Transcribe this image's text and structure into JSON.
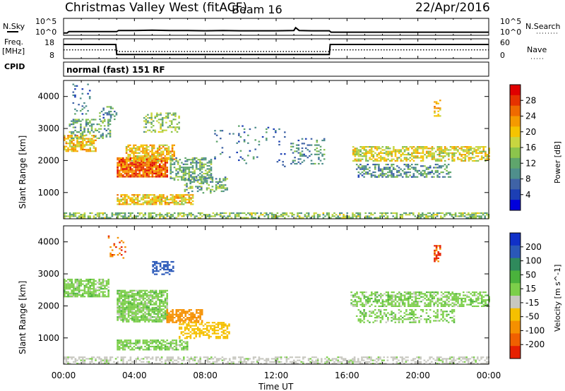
{
  "header": {
    "site": "Christmas Valley West (fitACF)",
    "beam": "Beam 16",
    "date": "22/Apr/2016"
  },
  "mode_label": "normal (fast) 151 RF",
  "left_labels": {
    "nsky": "N.Sky",
    "freq_1": "Freq.",
    "freq_2": "[MHz]",
    "cpid": "CPID"
  },
  "right_labels": {
    "nsearch": "N.Search",
    "nave": "Nave"
  },
  "colors": {
    "trace": "#000000",
    "missing": "#ffffff"
  },
  "chart_data": [
    {
      "type": "line",
      "panel": "noise",
      "left_axis_label": "N.Sky",
      "right_axis_label": "N.Search",
      "y_ticks_left": [
        "10^5",
        "10^0"
      ],
      "y_ticks_right": [
        "10^5",
        "10^0"
      ],
      "x_range_hours": [
        0,
        24
      ],
      "series": [
        {
          "name": "N.Sky",
          "x": [
            0,
            0.2,
            0.3,
            3,
            3.1,
            4,
            5,
            6,
            7,
            8,
            9,
            10,
            11,
            12,
            13,
            13.1,
            13.3,
            14,
            14.8,
            15,
            15.1,
            16,
            18,
            20,
            22,
            24
          ],
          "y": [
            0.3,
            0.3,
            0.8,
            0.8,
            1.2,
            1.2,
            1.3,
            1.2,
            1.2,
            1.1,
            1.2,
            1.1,
            1.1,
            1.1,
            1.2,
            2.2,
            1.2,
            1.1,
            1.1,
            1.1,
            0.6,
            0.6,
            0.6,
            0.6,
            0.6,
            0.6
          ]
        }
      ]
    },
    {
      "type": "line",
      "panel": "frequency",
      "left_axis_label": "Freq. [MHz]",
      "right_axis_label": "Nave",
      "y_ticks_left": [
        "18",
        "8"
      ],
      "y_ticks_right": [
        "60",
        "0"
      ],
      "x_range_hours": [
        0,
        24
      ],
      "series": [
        {
          "name": "Freq.",
          "x": [
            0,
            2.95,
            3.0,
            15.0,
            15.05,
            24
          ],
          "y": [
            15.5,
            15.5,
            9.6,
            9.6,
            15.5,
            15.5
          ]
        },
        {
          "name": "Nave",
          "x": [
            0,
            3,
            3.05,
            15,
            15.05,
            24
          ],
          "y": [
            26,
            26,
            20,
            20,
            26,
            26
          ]
        }
      ]
    },
    {
      "type": "heatmap",
      "panel": "power",
      "xlabel": "",
      "ylabel": "Slant Range [km]",
      "xlim": [
        0,
        24
      ],
      "ylim": [
        180,
        4500
      ],
      "y_ticks": [
        1000,
        2000,
        3000,
        4000
      ],
      "colorbar": {
        "label": "Power [dB]",
        "ticks": [
          4,
          8,
          12,
          16,
          20,
          24,
          28
        ],
        "range": [
          0,
          32
        ],
        "colors": [
          "#0000dc",
          "#1c3fb4",
          "#3f63a6",
          "#4f8f8c",
          "#5fa56c",
          "#8cc44c",
          "#c8d640",
          "#f5c400",
          "#f59a00",
          "#ef6a00",
          "#e63200",
          "#e00000"
        ]
      },
      "regions": [
        {
          "t0": 0.0,
          "t1": 1.8,
          "r0": 2300,
          "r1": 2800,
          "level": 20,
          "density": 0.7
        },
        {
          "t0": 0.3,
          "t1": 2.6,
          "r0": 2700,
          "r1": 3300,
          "level": 12,
          "density": 0.4
        },
        {
          "t0": 0.5,
          "t1": 1.5,
          "r0": 3400,
          "r1": 4400,
          "level": 8,
          "density": 0.12
        },
        {
          "t0": 2.0,
          "t1": 3.0,
          "r0": 3300,
          "r1": 3700,
          "level": 10,
          "density": 0.35
        },
        {
          "t0": 3.0,
          "t1": 5.8,
          "r0": 1500,
          "r1": 2100,
          "level": 26,
          "density": 0.9
        },
        {
          "t0": 3.5,
          "t1": 6.2,
          "r0": 2000,
          "r1": 2500,
          "level": 20,
          "density": 0.7
        },
        {
          "t0": 4.5,
          "t1": 6.5,
          "r0": 2900,
          "r1": 3500,
          "level": 14,
          "density": 0.4
        },
        {
          "t0": 6.0,
          "t1": 8.3,
          "r0": 1400,
          "r1": 2100,
          "level": 12,
          "density": 0.55
        },
        {
          "t0": 6.8,
          "t1": 9.2,
          "r0": 1000,
          "r1": 1500,
          "level": 12,
          "density": 0.45
        },
        {
          "t0": 3.0,
          "t1": 7.3,
          "r0": 650,
          "r1": 950,
          "level": 20,
          "density": 0.75
        },
        {
          "t0": 0.0,
          "t1": 24.0,
          "r0": 200,
          "r1": 380,
          "level": 14,
          "density": 0.55
        },
        {
          "t0": 8.5,
          "t1": 12.5,
          "r0": 1800,
          "r1": 3100,
          "level": 8,
          "density": 0.06
        },
        {
          "t0": 12.8,
          "t1": 14.7,
          "r0": 1900,
          "r1": 2700,
          "level": 10,
          "density": 0.25
        },
        {
          "t0": 16.3,
          "t1": 24.0,
          "r0": 2000,
          "r1": 2450,
          "level": 18,
          "density": 0.6
        },
        {
          "t0": 16.5,
          "t1": 21.8,
          "r0": 1500,
          "r1": 1900,
          "level": 10,
          "density": 0.45
        },
        {
          "t0": 20.9,
          "t1": 21.3,
          "r0": 3400,
          "r1": 3900,
          "level": 22,
          "density": 0.5
        }
      ]
    },
    {
      "type": "heatmap",
      "panel": "velocity",
      "xlabel": "Time UT",
      "ylabel": "Slant Range [km]",
      "xlim": [
        0,
        24
      ],
      "ylim": [
        180,
        4500
      ],
      "x_ticks": [
        "00:00",
        "04:00",
        "08:00",
        "12:00",
        "16:00",
        "20:00",
        "00:00"
      ],
      "y_ticks": [
        1000,
        2000,
        3000,
        4000
      ],
      "colorbar": {
        "label": "Velocity [m s^-1]",
        "ticks": [
          200,
          100,
          50,
          15,
          -15,
          -50,
          -100,
          -200
        ],
        "colors": [
          "#1030c8",
          "#2a58b8",
          "#2f8a5c",
          "#4ab23c",
          "#7ccf4a",
          "#c8c8c0",
          "#f5c000",
          "#f59000",
          "#f06000",
          "#e62000"
        ]
      },
      "regions": [
        {
          "t0": 0.0,
          "t1": 2.5,
          "r0": 2300,
          "r1": 2850,
          "level": 0,
          "density": 0.75
        },
        {
          "t0": 3.0,
          "t1": 5.8,
          "r0": 1500,
          "r1": 2500,
          "level": 0,
          "density": 0.8
        },
        {
          "t0": 3.0,
          "t1": 7.0,
          "r0": 650,
          "r1": 950,
          "level": 0,
          "density": 0.7
        },
        {
          "t0": 5.8,
          "t1": 7.8,
          "r0": 1500,
          "r1": 1900,
          "level": -150,
          "density": 0.7
        },
        {
          "t0": 6.5,
          "t1": 9.4,
          "r0": 1000,
          "r1": 1500,
          "level": -70,
          "density": 0.55
        },
        {
          "t0": 5.0,
          "t1": 6.2,
          "r0": 3000,
          "r1": 3400,
          "level": 150,
          "density": 0.5
        },
        {
          "t0": 0.0,
          "t1": 24.0,
          "r0": 200,
          "r1": 420,
          "level": -30,
          "density": 0.5
        },
        {
          "t0": 16.2,
          "t1": 24.0,
          "r0": 2000,
          "r1": 2450,
          "level": 0,
          "density": 0.6
        },
        {
          "t0": 16.5,
          "t1": 22.0,
          "r0": 1500,
          "r1": 1900,
          "level": 0,
          "density": 0.4
        },
        {
          "t0": 20.9,
          "t1": 21.3,
          "r0": 3400,
          "r1": 3900,
          "level": -200,
          "density": 0.55
        },
        {
          "t0": 2.5,
          "t1": 3.5,
          "r0": 3500,
          "r1": 4200,
          "level": -200,
          "density": 0.15
        }
      ]
    }
  ]
}
